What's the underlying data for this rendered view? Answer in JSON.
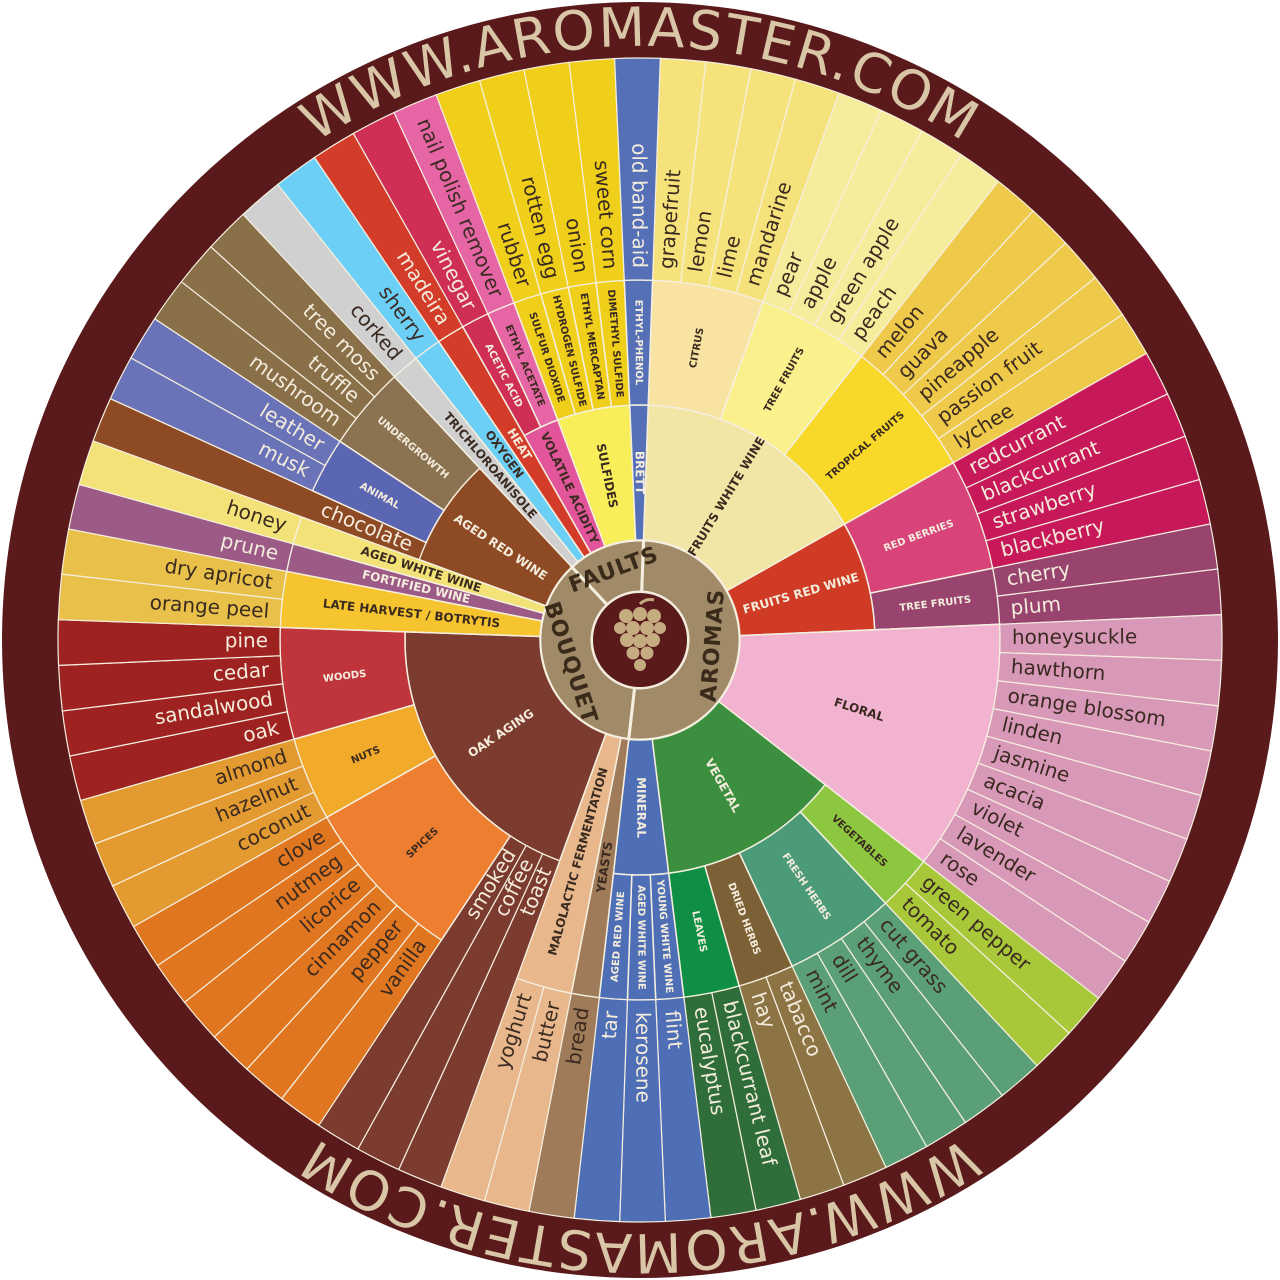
{
  "header": {
    "url_top": "WWW.AROMASTER.COM",
    "url_bottom": "WWW.AROMASTER.COM"
  },
  "groups": [
    {
      "label": "AROMAS",
      "color": "#a08a68",
      "children": [
        {
          "label": "FRUITS WHITE WINE",
          "color": "#f2e6a6",
          "children": [
            {
              "label": "CITRUS",
              "color": "#f8e3a2",
              "leaf_color": "#f6e27a",
              "children": [
                "grapefruit",
                "lemon",
                "lime",
                "mandarine"
              ]
            },
            {
              "label": "TREE FRUITS",
              "color": "#faf08c",
              "leaf_color": "#f5ec9c",
              "children": [
                "pear",
                "apple",
                "green apple",
                "peach"
              ]
            },
            {
              "label": "TROPICAL FRUITS",
              "color": "#f8d829",
              "leaf_color": "#eec94a",
              "children": [
                "melon",
                "guava",
                "pineapple",
                "passion fruit",
                "lychee"
              ]
            }
          ]
        },
        {
          "label": "FRUITS RED WINE",
          "color": "#cf3b24",
          "children": [
            {
              "label": "RED BERRIES",
              "color": "#d8437a",
              "leaf_color": "#c7185a",
              "children": [
                "redcurrant",
                "blackcurrant",
                "strawberry",
                "blackberry"
              ]
            },
            {
              "label": "TREE FRUITS",
              "color": "#98446f",
              "leaf_color": "#98446f",
              "children": [
                "cherry",
                "plum"
              ]
            }
          ]
        },
        {
          "label": "FLORAL",
          "color": "#f2b3d0",
          "leaf_color": "#d898b8",
          "children": [
            "honeysuckle",
            "hawthorn",
            "orange blossom",
            "linden",
            "jasmine",
            "acacia",
            "violet",
            "lavender",
            "rose"
          ]
        },
        {
          "label": "VEGETAL",
          "color": "#3c8f3f",
          "children": [
            {
              "label": "VEGETABLES",
              "color": "#8dc63f",
              "leaf_color": "#a8c83a",
              "children": [
                "green pepper",
                "tomato"
              ]
            },
            {
              "label": "FRESH HERBS",
              "color": "#4b9a78",
              "leaf_color": "#5a9f76",
              "children": [
                "cut grass",
                "thyme",
                "dill",
                "mint"
              ]
            },
            {
              "label": "DRIED HERBS",
              "color": "#7d6136",
              "leaf_color": "#8c7444",
              "children": [
                "tabacco",
                "hay"
              ]
            },
            {
              "label": "LEAVES",
              "color": "#0f8f45",
              "leaf_color": "#2f6e3a",
              "children": [
                "blackcurrant leaf",
                "eucalyptus"
              ]
            }
          ]
        },
        {
          "label": "MINERAL",
          "color": "#4e6fb6",
          "children": [
            {
              "label": "YOUNG WHITE WINE",
              "children": [
                "flint"
              ]
            },
            {
              "label": "AGED WHITE WINE",
              "children": [
                "kerosene"
              ]
            },
            {
              "label": "AGED RED WINE",
              "children": [
                "tar"
              ]
            }
          ]
        }
      ]
    },
    {
      "label": "BOUQUET",
      "color": "#a08a68",
      "children": [
        {
          "label": "YEASTS",
          "color": "#a07b5a",
          "children": [
            "bread"
          ]
        },
        {
          "label": "MALOLACTIC FERMENTATION",
          "color": "#e8b88c",
          "children": [
            "butter",
            "yoghurt"
          ]
        },
        {
          "label": "OAK AGING",
          "color": "#7b3b2e",
          "children": [
            "toast",
            "coffee",
            "smoked",
            {
              "label": "SPICES",
              "color": "#ef7f30",
              "leaf_color": "#e0761f",
              "children": [
                "vanilla",
                "pepper",
                "cinnamon",
                "licorice",
                "nutmeg",
                "clove"
              ]
            },
            {
              "label": "NUTS",
              "color": "#f2aa2a",
              "leaf_color": "#e39a30",
              "children": [
                "coconut",
                "hazelnut",
                "almond"
              ]
            },
            {
              "label": "WOODS",
              "color": "#c0353b",
              "leaf_color": "#9e2320",
              "children": [
                "oak",
                "sandalwood",
                "cedar",
                "pine"
              ]
            }
          ]
        },
        {
          "label": "LATE HARVEST / BOTRYTIS",
          "color": "#f6c42f",
          "leaf_color": "#e8c04a",
          "children": [
            "orange peel",
            "dry apricot"
          ]
        },
        {
          "label": "FORTIFIED WINE",
          "color": "#9c5a86",
          "children": [
            "prune"
          ]
        },
        {
          "label": "AGED WHITE WINE",
          "color": "#f2e278",
          "children": [
            "honey"
          ]
        },
        {
          "label": "AGED RED WINE",
          "color": "#8e4a24",
          "children": [
            "chocolate",
            {
              "label": "ANIMAL",
              "color": "#5b66b2",
              "leaf_color": "#6a73b8",
              "children": [
                "musk",
                "leather"
              ]
            },
            {
              "label": "UNDERGROWTH",
              "color": "#8b7250",
              "leaf_color": "#8a7048",
              "children": [
                "mushroom",
                "truffle",
                "tree moss"
              ]
            }
          ]
        }
      ]
    },
    {
      "label": "FAULTS",
      "color": "#a08a68",
      "children": [
        {
          "label": "TRICHLOROANISOLE",
          "color": "#d0d0d0",
          "children": [
            "corked"
          ]
        },
        {
          "label": "OXYGEN",
          "color": "#6ccff6",
          "children": [
            "sherry"
          ]
        },
        {
          "label": "HEAT",
          "color": "#d43c2a",
          "children": [
            "madeira"
          ]
        },
        {
          "label": "VOLATILE ACIDITY",
          "color": "#e2559a",
          "children": [
            {
              "label": "ACETIC ACID",
              "color": "#cf2e55",
              "children": [
                "vinegar"
              ]
            },
            {
              "label": "ETHYL ACETATE",
              "color": "#e565a5",
              "children": [
                "nail polish remover"
              ]
            }
          ]
        },
        {
          "label": "SULFIDES",
          "color": "#f8ee5a",
          "children": [
            {
              "label": "SULFUR DIOXIDE",
              "color": "#f0cf1a",
              "children": [
                "rubber"
              ]
            },
            {
              "label": "HYDROGEN SULFIDE",
              "color": "#f0cf1a",
              "children": [
                "rotten egg"
              ]
            },
            {
              "label": "ETHYL MERCAPTAN",
              "color": "#f0cf1a",
              "children": [
                "onion"
              ]
            },
            {
              "label": "DIMETHYL SULFIDE",
              "color": "#f0cf1a",
              "children": [
                "sweet corn"
              ]
            }
          ]
        },
        {
          "label": "BRETT",
          "color": "#5670b8",
          "children": [
            {
              "label": "ETHYL-PHENOL",
              "children": [
                "old band-aid"
              ]
            }
          ]
        }
      ]
    }
  ]
}
